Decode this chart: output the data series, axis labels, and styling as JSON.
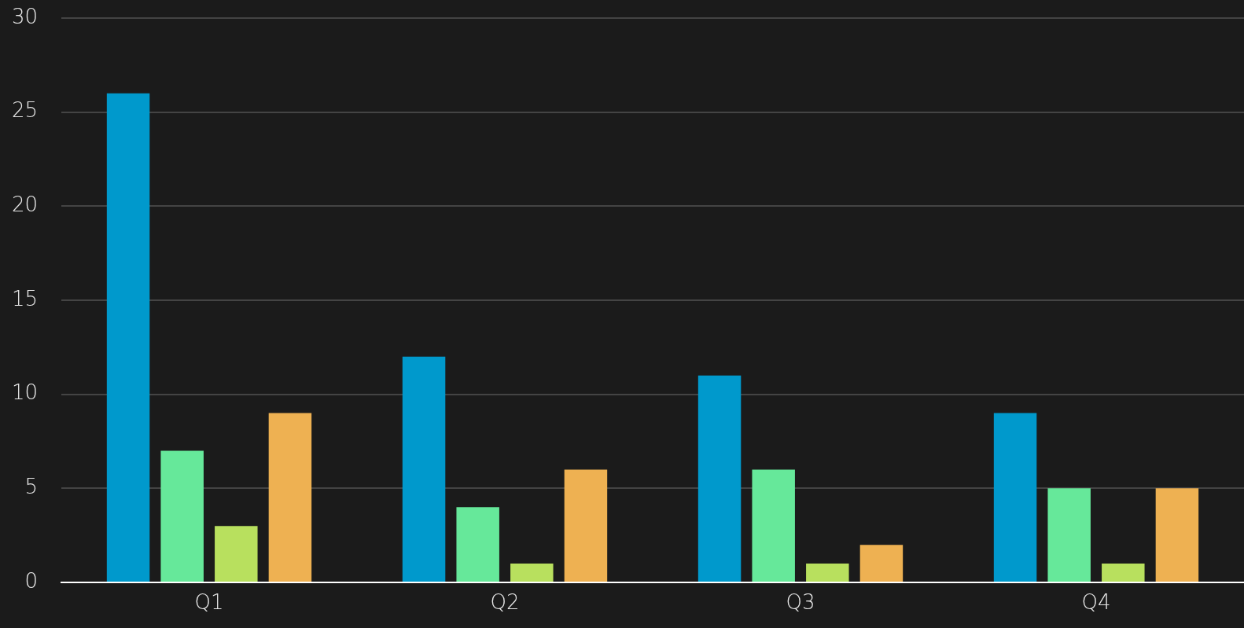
{
  "chart_data": {
    "type": "bar",
    "categories": [
      "Q1",
      "Q2",
      "Q3",
      "Q4"
    ],
    "series": [
      {
        "color": "#0099cc",
        "values": [
          26,
          12,
          11,
          9
        ]
      },
      {
        "color": "#66e89a",
        "values": [
          7,
          4,
          6,
          5
        ]
      },
      {
        "color": "#b8e05e",
        "values": [
          3,
          1,
          1,
          1
        ]
      },
      {
        "color": "#eeb152",
        "values": [
          9,
          6,
          2,
          5
        ]
      }
    ],
    "ylim": [
      0,
      30
    ],
    "yticks": [
      0,
      5,
      10,
      15,
      20,
      25,
      30
    ],
    "grid": "y"
  }
}
